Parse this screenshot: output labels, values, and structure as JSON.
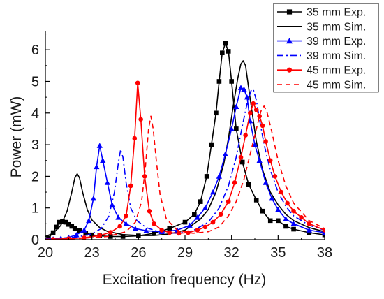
{
  "chart_data": {
    "type": "line",
    "title": "",
    "xlabel": "Excitation frequency (Hz)",
    "ylabel": "Power (mW)",
    "xlim": [
      20,
      38
    ],
    "ylim": [
      0,
      6.6
    ],
    "xticks": [
      20,
      23,
      26,
      29,
      32,
      35,
      38
    ],
    "yticks": [
      0,
      1,
      2,
      3,
      4,
      5,
      6
    ],
    "grid": false,
    "legend_position": "top-right",
    "series": [
      {
        "name": "35 mm Exp.",
        "color": "#000000",
        "marker": "square",
        "line": "solid",
        "x": [
          20.2,
          20.5,
          20.7,
          20.9,
          21.1,
          21.3,
          21.5,
          21.7,
          21.9,
          22.2,
          22.6,
          23.0,
          23.5,
          24.2,
          25.0,
          26.0,
          27.0,
          28.0,
          29.0,
          29.6,
          30.0,
          30.4,
          30.7,
          31.0,
          31.2,
          31.4,
          31.6,
          31.8,
          32.0,
          32.3,
          32.7,
          33.1,
          33.6,
          34.0,
          34.5,
          35.0,
          35.5,
          36.0,
          37.0,
          38.0
        ],
        "y": [
          0.05,
          0.22,
          0.4,
          0.55,
          0.58,
          0.55,
          0.48,
          0.42,
          0.36,
          0.28,
          0.2,
          0.15,
          0.12,
          0.1,
          0.1,
          0.12,
          0.2,
          0.35,
          0.55,
          0.8,
          1.2,
          2.0,
          3.0,
          4.0,
          5.0,
          5.9,
          6.2,
          5.95,
          5.0,
          3.5,
          2.45,
          1.75,
          1.25,
          0.9,
          0.6,
          0.6,
          0.42,
          0.33,
          0.22,
          0.15
        ]
      },
      {
        "name": "35 mm Sim.",
        "color": "#000000",
        "marker": "none",
        "line": "solid",
        "x": [
          20.0,
          20.5,
          21.0,
          21.4,
          21.7,
          21.9,
          22.05,
          22.2,
          22.4,
          22.7,
          23.0,
          23.5,
          24.0,
          25.0,
          26.0,
          27.0,
          28.0,
          29.0,
          30.0,
          30.5,
          31.0,
          31.5,
          31.8,
          32.1,
          32.4,
          32.6,
          32.75,
          32.9,
          33.1,
          33.3,
          33.6,
          34.0,
          34.5,
          35.0,
          35.5,
          36.0,
          37.0,
          38.0
        ],
        "y": [
          0.1,
          0.2,
          0.45,
          0.9,
          1.5,
          1.95,
          2.08,
          1.95,
          1.5,
          0.95,
          0.62,
          0.38,
          0.26,
          0.16,
          0.13,
          0.13,
          0.18,
          0.3,
          0.65,
          0.95,
          1.5,
          2.4,
          3.2,
          4.2,
          5.1,
          5.55,
          5.65,
          5.5,
          4.8,
          4.1,
          3.1,
          2.2,
          1.5,
          1.1,
          0.8,
          0.6,
          0.38,
          0.25
        ]
      },
      {
        "name": "39 mm Exp.",
        "color": "#0000ff",
        "marker": "triangle",
        "line": "solid",
        "x": [
          20.5,
          21.0,
          21.5,
          22.0,
          22.5,
          22.8,
          23.1,
          23.3,
          23.5,
          23.7,
          24.0,
          24.3,
          24.7,
          25.2,
          25.8,
          26.5,
          27.5,
          28.5,
          29.3,
          29.8,
          30.3,
          30.8,
          31.2,
          31.6,
          32.0,
          32.3,
          32.6,
          32.8,
          33.0,
          33.2,
          33.5,
          33.8,
          34.2,
          34.6,
          35.0,
          35.5,
          36.0,
          37.0,
          38.0
        ],
        "y": [
          0.02,
          0.04,
          0.07,
          0.15,
          0.3,
          0.6,
          1.3,
          2.3,
          2.97,
          2.5,
          1.8,
          1.1,
          0.7,
          0.5,
          0.35,
          0.28,
          0.25,
          0.3,
          0.45,
          0.7,
          1.0,
          1.5,
          2.0,
          2.7,
          3.5,
          4.2,
          4.8,
          4.75,
          4.5,
          3.75,
          3.0,
          2.5,
          1.8,
          1.3,
          0.95,
          0.65,
          0.5,
          0.3,
          0.22
        ]
      },
      {
        "name": "39 mm Sim.",
        "color": "#0000ff",
        "marker": "none",
        "line": "dashdot",
        "x": [
          20.0,
          21.0,
          22.0,
          23.0,
          23.6,
          24.1,
          24.45,
          24.7,
          24.85,
          25.0,
          25.2,
          25.5,
          25.9,
          26.5,
          27.5,
          28.5,
          29.5,
          30.5,
          31.2,
          31.8,
          32.3,
          32.7,
          33.0,
          33.25,
          33.4,
          33.6,
          33.8,
          34.1,
          34.5,
          35.0,
          35.5,
          36.0,
          37.0,
          38.0
        ],
        "y": [
          0.02,
          0.04,
          0.08,
          0.18,
          0.35,
          0.75,
          1.5,
          2.4,
          2.85,
          2.6,
          1.8,
          1.0,
          0.6,
          0.38,
          0.22,
          0.2,
          0.28,
          0.55,
          1.0,
          1.7,
          2.6,
          3.6,
          4.3,
          4.7,
          4.75,
          4.4,
          3.8,
          3.0,
          2.2,
          1.5,
          1.05,
          0.75,
          0.45,
          0.3
        ]
      },
      {
        "name": "45 mm Exp.",
        "color": "#ff0000",
        "marker": "circle",
        "line": "solid",
        "x": [
          20.5,
          21.5,
          22.5,
          23.5,
          24.2,
          24.8,
          25.2,
          25.5,
          25.75,
          25.95,
          26.15,
          26.4,
          26.7,
          27.0,
          27.5,
          28.0,
          28.6,
          29.2,
          29.8,
          30.3,
          30.8,
          31.3,
          31.8,
          32.2,
          32.6,
          32.9,
          33.2,
          33.4,
          33.6,
          33.8,
          34.0,
          34.2,
          34.5,
          34.8,
          35.2,
          35.6,
          36.0,
          36.5,
          37.0,
          38.0
        ],
        "y": [
          0.01,
          0.03,
          0.06,
          0.13,
          0.23,
          0.42,
          0.75,
          1.7,
          3.2,
          4.95,
          3.8,
          2.0,
          0.9,
          0.5,
          0.3,
          0.22,
          0.2,
          0.22,
          0.3,
          0.4,
          0.55,
          0.8,
          1.2,
          1.8,
          2.6,
          3.3,
          4.0,
          4.3,
          4.1,
          3.9,
          3.6,
          3.1,
          2.5,
          2.0,
          1.5,
          1.15,
          0.9,
          0.7,
          0.5,
          0.3
        ]
      },
      {
        "name": "45 mm Sim.",
        "color": "#ff0000",
        "marker": "none",
        "line": "dashed",
        "x": [
          20.0,
          22.0,
          24.0,
          25.2,
          25.8,
          26.2,
          26.45,
          26.65,
          26.8,
          26.95,
          27.15,
          27.4,
          27.8,
          28.5,
          29.5,
          30.5,
          31.2,
          31.8,
          32.3,
          32.8,
          33.2,
          33.5,
          33.75,
          33.95,
          34.1,
          34.3,
          34.6,
          35.0,
          35.5,
          36.0,
          37.0,
          38.0
        ],
        "y": [
          0.01,
          0.03,
          0.1,
          0.25,
          0.55,
          1.2,
          2.3,
          3.5,
          3.9,
          3.5,
          2.5,
          1.4,
          0.65,
          0.3,
          0.2,
          0.25,
          0.4,
          0.75,
          1.2,
          1.9,
          2.7,
          3.3,
          3.8,
          4.15,
          4.22,
          4.0,
          3.4,
          2.5,
          1.7,
          1.15,
          0.6,
          0.35
        ]
      }
    ]
  }
}
